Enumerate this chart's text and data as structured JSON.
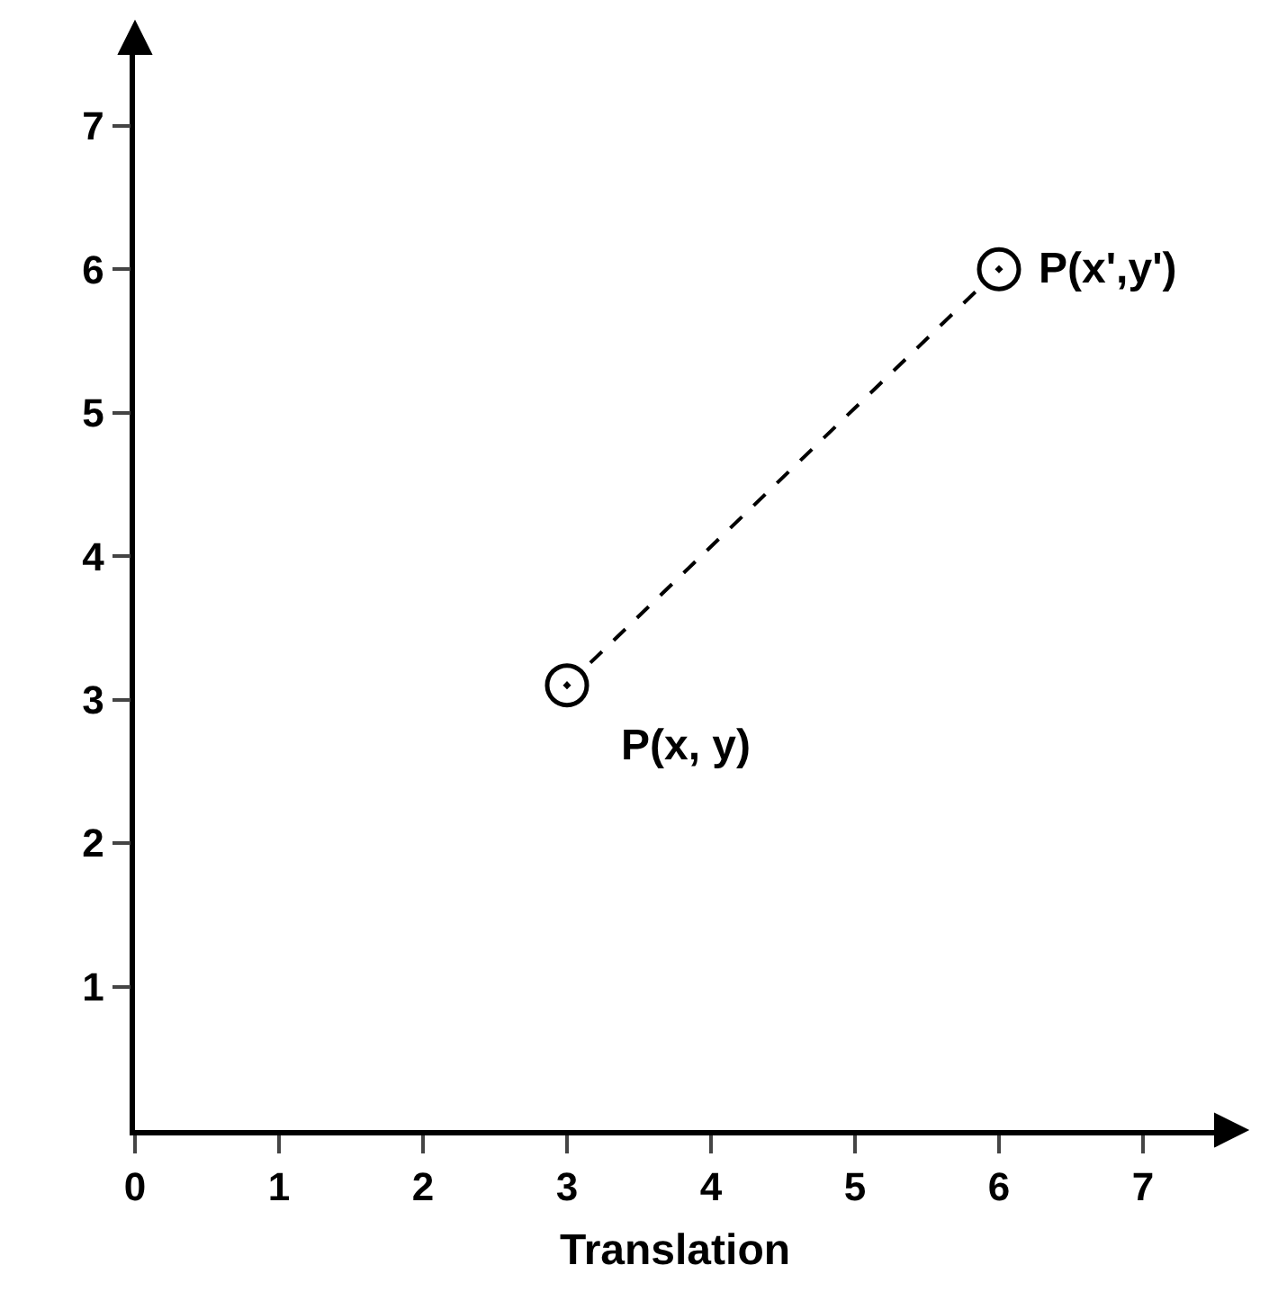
{
  "chart_data": {
    "type": "scatter",
    "xlabel": "Translation",
    "series": [
      {
        "color": "#000000",
        "x": [
          3,
          6
        ],
        "values": [
          3.1,
          6
        ]
      }
    ],
    "line_style": "dashed",
    "marker": "circle",
    "xlim": [
      0,
      7.5
    ],
    "ylim": [
      0,
      7.5
    ],
    "xticks": [
      0,
      1,
      2,
      3,
      4,
      5,
      6,
      7
    ],
    "yticks": [
      1,
      2,
      3,
      4,
      5,
      6,
      7
    ],
    "annotations": [
      {
        "text": "P(x, y)",
        "x": 3,
        "y": 3.1
      },
      {
        "text": "P(x',y')",
        "x": 6,
        "y": 6
      }
    ]
  }
}
